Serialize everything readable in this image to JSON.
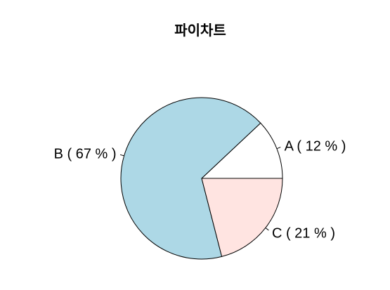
{
  "chart_data": {
    "type": "pie",
    "title": "파이차트",
    "direction": "counterclockwise",
    "start": "3 o'clock",
    "slices": [
      {
        "name": "A",
        "value": 12,
        "label": "A ( 12 % )",
        "color": "#ffffff"
      },
      {
        "name": "B",
        "value": 67,
        "label": "B ( 67 % )",
        "color": "#add8e6"
      },
      {
        "name": "C",
        "value": 21,
        "label": "C ( 21 % )",
        "color": "#ffe4e1"
      }
    ]
  }
}
